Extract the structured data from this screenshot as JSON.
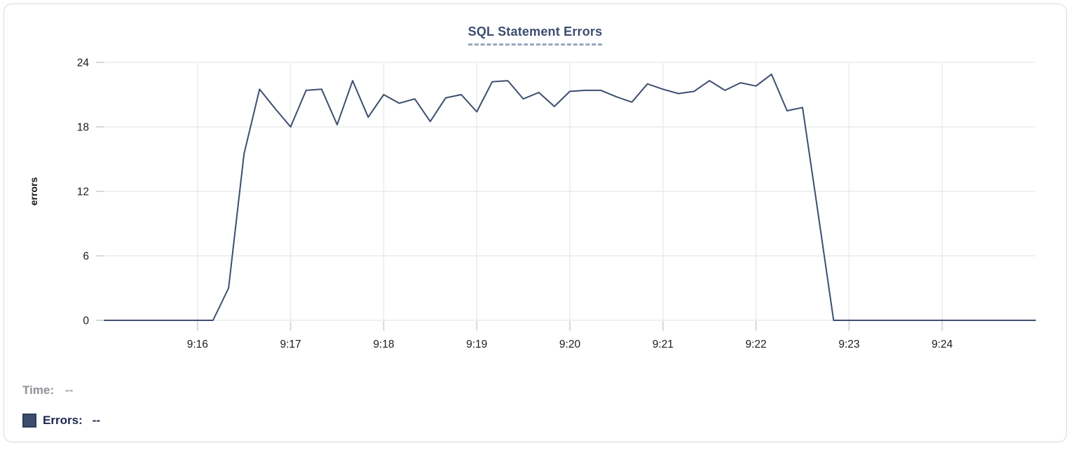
{
  "legend": {
    "time_label": "Time:",
    "time_value": "--",
    "errors_label": "Errors:",
    "errors_value": "--",
    "swatch_color": "#3e4d6b"
  },
  "colors": {
    "line": "#3d4e6f",
    "title": "#3d4d6f",
    "gridline": "#eaebed",
    "tick_mark": "#d7d9db",
    "axis_text": "#1b1b1b",
    "card_border": "#dcdcdc"
  },
  "chart_data": {
    "type": "line",
    "title": "SQL Statement Errors",
    "xlabel": "",
    "ylabel": "errors",
    "ylim": [
      0,
      24
    ],
    "y_ticks": [
      0,
      6,
      12,
      18,
      24
    ],
    "x_tick_labels": [
      "9:16",
      "9:17",
      "9:18",
      "9:19",
      "9:20",
      "9:21",
      "9:22",
      "9:23",
      "9:24"
    ],
    "x_range": [
      "9:15:00",
      "9:25:00"
    ],
    "grid": true,
    "legend_position": "bottom-left",
    "series": [
      {
        "name": "Errors",
        "color": "#3d4e6f",
        "times": [
          "9:15:00",
          "9:15:10",
          "9:15:20",
          "9:15:30",
          "9:15:40",
          "9:15:50",
          "9:16:00",
          "9:16:10",
          "9:16:20",
          "9:16:30",
          "9:16:40",
          "9:16:50",
          "9:17:00",
          "9:17:10",
          "9:17:20",
          "9:17:30",
          "9:17:40",
          "9:17:50",
          "9:18:00",
          "9:18:10",
          "9:18:20",
          "9:18:30",
          "9:18:40",
          "9:18:50",
          "9:19:00",
          "9:19:10",
          "9:19:20",
          "9:19:30",
          "9:19:40",
          "9:19:50",
          "9:20:00",
          "9:20:10",
          "9:20:20",
          "9:20:30",
          "9:20:40",
          "9:20:50",
          "9:21:00",
          "9:21:10",
          "9:21:20",
          "9:21:30",
          "9:21:40",
          "9:21:50",
          "9:22:00",
          "9:22:10",
          "9:22:20",
          "9:22:30",
          "9:22:40",
          "9:22:50",
          "9:23:00",
          "9:23:10",
          "9:23:20",
          "9:23:30",
          "9:23:40",
          "9:23:50",
          "9:24:00",
          "9:24:10",
          "9:24:20",
          "9:24:30",
          "9:24:40",
          "9:24:50",
          "9:25:00"
        ],
        "values": [
          0,
          0,
          0,
          0,
          0,
          0,
          0,
          0,
          3,
          15.5,
          21.5,
          19.7,
          18,
          21.4,
          21.5,
          18.2,
          22.3,
          18.9,
          21,
          20.2,
          20.6,
          18.5,
          20.7,
          21,
          19.4,
          22.2,
          22.3,
          20.6,
          21.2,
          19.9,
          21.3,
          21.4,
          21.4,
          20.8,
          20.3,
          22,
          21.5,
          21.1,
          21.3,
          22.3,
          21.4,
          22.1,
          21.8,
          22.9,
          19.5,
          19.8,
          10,
          0,
          0,
          0,
          0,
          0,
          0,
          0,
          0,
          0,
          0,
          0,
          0,
          0,
          0
        ]
      }
    ]
  }
}
